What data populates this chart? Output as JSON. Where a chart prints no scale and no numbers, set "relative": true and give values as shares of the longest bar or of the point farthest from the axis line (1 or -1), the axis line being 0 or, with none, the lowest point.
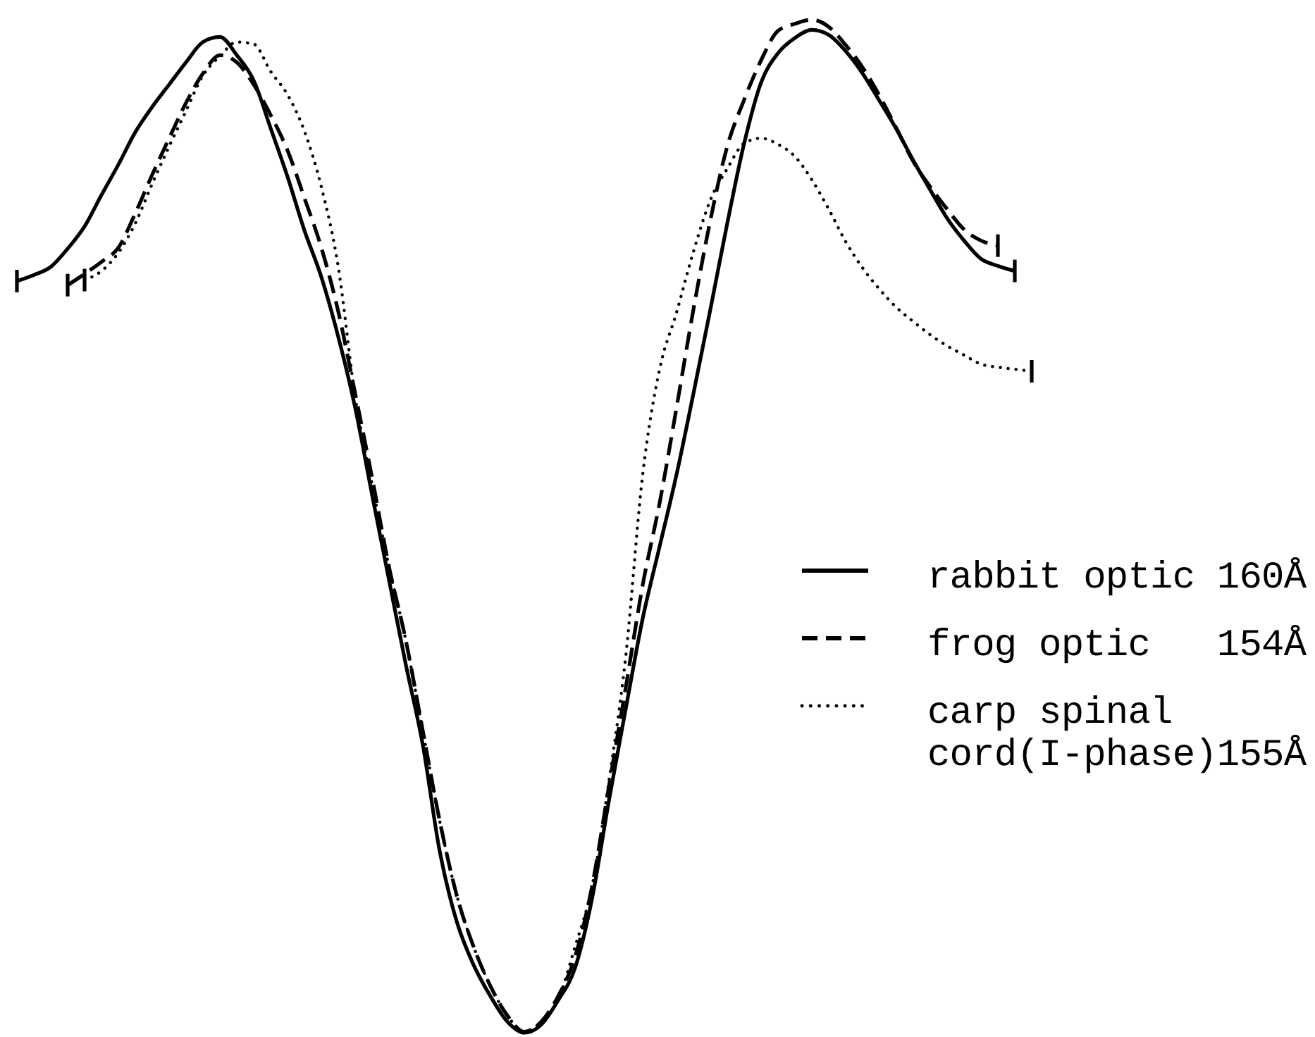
{
  "chart_data": {
    "type": "line",
    "relative": true,
    "legend": "right",
    "categories": [
      null,
      null,
      null,
      null,
      null,
      null,
      null,
      null,
      null,
      null,
      null,
      null,
      null,
      null,
      null,
      null,
      null,
      null,
      null,
      null,
      null,
      null,
      null,
      null,
      null,
      null,
      null,
      null,
      null,
      null,
      null,
      null,
      null,
      null,
      null,
      null,
      null,
      null,
      null,
      null,
      null,
      null,
      null,
      null,
      null,
      null,
      null,
      null,
      null,
      null,
      null,
      null,
      null,
      null,
      null,
      null,
      null,
      null,
      null,
      null,
      null
    ],
    "series": [
      {
        "name": "rabbit optic 160Å",
        "color": "#000000",
        "line_style": "solid",
        "values": [
          0.742,
          0.748,
          0.756,
          0.774,
          0.796,
          0.827,
          0.857,
          0.889,
          0.914,
          0.936,
          0.958,
          0.978,
          0.983,
          0.965,
          0.94,
          0.893,
          0.845,
          0.792,
          0.746,
          0.687,
          0.617,
          0.531,
          0.447,
          0.363,
          0.284,
          0.179,
          0.11,
          0.067,
          0.036,
          0.011,
          0,
          0.008,
          0.032,
          0.064,
          0.132,
          0.229,
          0.32,
          0.409,
          0.48,
          0.551,
          0.631,
          0.714,
          0.799,
          0.878,
          0.938,
          0.967,
          0.982,
          0.99,
          0.985,
          0.969,
          0.947,
          0.92,
          0.892,
          0.861,
          0.832,
          0.804,
          0.782,
          0.764,
          0.757,
          0.752,
          null
        ]
      },
      {
        "name": "frog optic   154Å",
        "color": "#000000",
        "line_style": "dashed",
        "values": [
          null,
          null,
          null,
          0.738,
          0.749,
          0.761,
          0.775,
          0.809,
          0.847,
          0.883,
          0.918,
          0.947,
          0.965,
          0.958,
          0.936,
          0.906,
          0.871,
          0.824,
          0.775,
          0.712,
          0.631,
          0.548,
          0.46,
          0.387,
          0.298,
          0.209,
          0.136,
          0.085,
          0.046,
          0.017,
          0.001,
          0.011,
          0.036,
          0.075,
          0.144,
          0.243,
          0.341,
          0.442,
          0.523,
          0.617,
          0.714,
          0.802,
          0.875,
          0.921,
          0.96,
          0.989,
          0.996,
          1,
          0.993,
          0.975,
          0.953,
          0.925,
          0.893,
          0.86,
          0.835,
          0.813,
          0.793,
          0.782,
          0.777,
          null,
          null
        ]
      },
      {
        "name": "carp spinal cord(I-phase)155Å",
        "color": "#000000",
        "line_style": "dotted",
        "values": [
          null,
          null,
          null,
          null,
          0.743,
          0.752,
          0.77,
          0.799,
          0.838,
          0.875,
          0.91,
          0.945,
          0.964,
          0.978,
          0.976,
          0.949,
          0.926,
          0.89,
          0.835,
          0.756,
          0.628,
          0.541,
          0.46,
          0.387,
          0.298,
          0.209,
          0.136,
          0.085,
          0.046,
          0.017,
          0.001,
          0.011,
          0.033,
          0.085,
          0.144,
          0.248,
          0.372,
          0.551,
          0.655,
          0.711,
          0.771,
          0.822,
          0.853,
          0.878,
          0.883,
          0.877,
          0.865,
          0.842,
          0.813,
          0.781,
          0.755,
          0.734,
          0.716,
          0.702,
          0.689,
          0.678,
          0.669,
          0.66,
          0.657,
          0.655,
          0.653
        ]
      }
    ]
  }
}
